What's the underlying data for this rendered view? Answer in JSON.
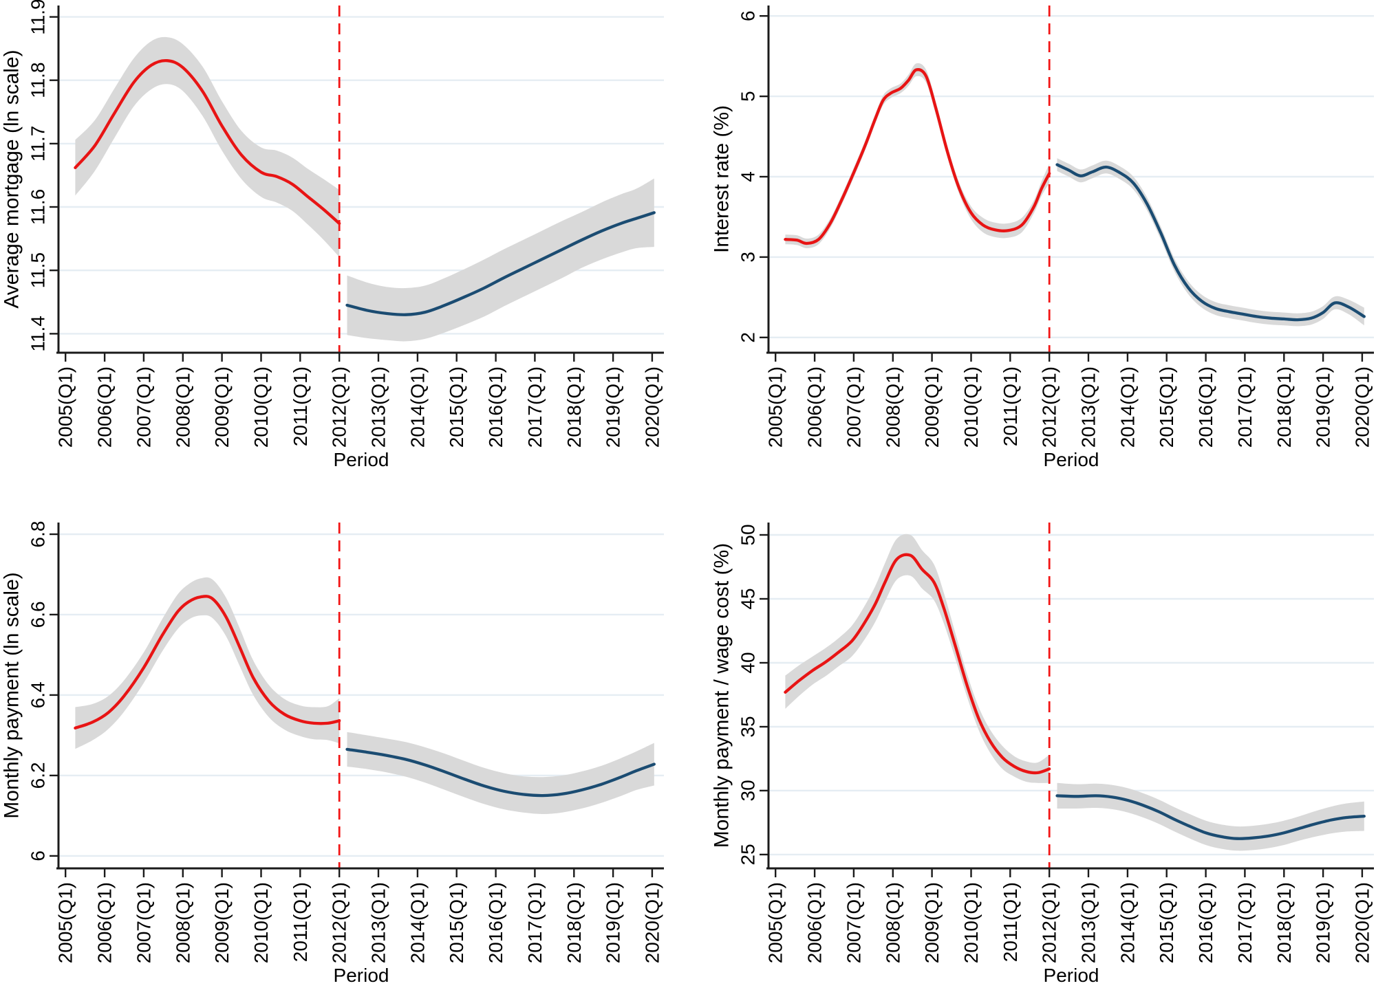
{
  "colors": {
    "red": "#e81414",
    "navy": "#1b4c72",
    "band": "#d9d9d9",
    "grid": "#e5edf3",
    "axis": "#1a1a1a",
    "text": "#000000"
  },
  "cutoff": {
    "x": 2012,
    "label": "2012(Q1)",
    "style": "dashed",
    "color": "#f21515"
  },
  "x_axis": {
    "title": "Period",
    "range": [
      2004.82,
      2020.3
    ],
    "tick_values": [
      2005,
      2006,
      2007,
      2008,
      2009,
      2010,
      2011,
      2012,
      2013,
      2014,
      2015,
      2016,
      2017,
      2018,
      2019,
      2020
    ],
    "tick_labels": [
      "2005(Q1)",
      "2006(Q1)",
      "2007(Q1)",
      "2008(Q1)",
      "2009(Q1)",
      "2010(Q1)",
      "2011(Q1)",
      "2012(Q1)",
      "2013(Q1)",
      "2014(Q1)",
      "2015(Q1)",
      "2016(Q1)",
      "2017(Q1)",
      "2018(Q1)",
      "2019(Q1)",
      "2020(Q1)"
    ],
    "tick_label_rotation_deg": -90
  },
  "chart_data": [
    {
      "type": "line",
      "position": "top-left",
      "ylabel": "Average mortgage (ln scale)",
      "xlabel": "Period",
      "grid": true,
      "legend": "none",
      "ylim": [
        11.37,
        11.918
      ],
      "ytick_values": [
        11.4,
        11.5,
        11.6,
        11.7,
        11.8,
        11.9
      ],
      "ytick_labels": [
        "11.4",
        "11.5",
        "11.6",
        "11.7",
        "11.8",
        "11.9"
      ],
      "series": [
        {
          "name": "before-2012",
          "color": "#e81414",
          "x": [
            2005.25,
            2005.75,
            2006.25,
            2006.75,
            2007.2,
            2007.6,
            2008.0,
            2008.5,
            2009.0,
            2009.5,
            2010.0,
            2010.4,
            2010.8,
            2011.2,
            2011.6,
            2012.0
          ],
          "y": [
            11.662,
            11.697,
            11.748,
            11.797,
            11.824,
            11.831,
            11.82,
            11.783,
            11.728,
            11.682,
            11.655,
            11.648,
            11.636,
            11.616,
            11.596,
            11.574
          ],
          "y_upper": [
            11.706,
            11.737,
            11.787,
            11.835,
            11.862,
            11.868,
            11.857,
            11.822,
            11.767,
            11.72,
            11.694,
            11.689,
            11.678,
            11.66,
            11.644,
            11.627
          ],
          "y_lower": [
            11.618,
            11.657,
            11.709,
            11.759,
            11.786,
            11.794,
            11.783,
            11.744,
            11.689,
            11.644,
            11.616,
            11.607,
            11.594,
            11.572,
            11.548,
            11.521
          ]
        },
        {
          "name": "after-2012",
          "color": "#1b4c72",
          "x": [
            2012.2,
            2012.7,
            2013.2,
            2013.7,
            2014.2,
            2014.7,
            2015.2,
            2015.7,
            2016.2,
            2016.7,
            2017.2,
            2017.7,
            2018.2,
            2018.7,
            2019.2,
            2019.6,
            2020.05
          ],
          "y": [
            11.445,
            11.437,
            11.432,
            11.43,
            11.434,
            11.445,
            11.458,
            11.472,
            11.488,
            11.503,
            11.518,
            11.533,
            11.548,
            11.562,
            11.574,
            11.582,
            11.591
          ],
          "y_upper": [
            11.492,
            11.481,
            11.474,
            11.472,
            11.476,
            11.488,
            11.502,
            11.517,
            11.533,
            11.548,
            11.563,
            11.578,
            11.592,
            11.607,
            11.62,
            11.629,
            11.645
          ],
          "y_lower": [
            11.398,
            11.393,
            11.39,
            11.388,
            11.392,
            11.402,
            11.414,
            11.427,
            11.443,
            11.458,
            11.473,
            11.488,
            11.504,
            11.517,
            11.528,
            11.535,
            11.537
          ]
        }
      ]
    },
    {
      "type": "line",
      "position": "top-right",
      "ylabel": "Interest rate (%)",
      "xlabel": "Period",
      "grid": true,
      "legend": "none",
      "ylim": [
        1.81,
        6.13
      ],
      "ytick_values": [
        2,
        3,
        4,
        5,
        6
      ],
      "ytick_labels": [
        "2",
        "3",
        "4",
        "5",
        "6"
      ],
      "series": [
        {
          "name": "before-2012",
          "color": "#e81414",
          "x": [
            2005.25,
            2005.55,
            2005.8,
            2006.1,
            2006.4,
            2006.7,
            2007.0,
            2007.3,
            2007.55,
            2007.75,
            2007.95,
            2008.2,
            2008.4,
            2008.6,
            2008.85,
            2009.1,
            2009.4,
            2009.7,
            2010.0,
            2010.3,
            2010.6,
            2010.95,
            2011.3,
            2011.6,
            2011.8,
            2012.0
          ],
          "y": [
            3.22,
            3.21,
            3.17,
            3.22,
            3.42,
            3.72,
            4.05,
            4.4,
            4.72,
            4.95,
            5.04,
            5.1,
            5.2,
            5.33,
            5.25,
            4.85,
            4.3,
            3.85,
            3.55,
            3.4,
            3.34,
            3.33,
            3.4,
            3.62,
            3.85,
            4.04
          ],
          "y_upper": [
            3.28,
            3.27,
            3.23,
            3.28,
            3.48,
            3.78,
            4.11,
            4.46,
            4.78,
            5.01,
            5.1,
            5.16,
            5.27,
            5.41,
            5.33,
            4.93,
            4.37,
            3.92,
            3.63,
            3.49,
            3.43,
            3.42,
            3.49,
            3.7,
            3.94,
            4.16
          ],
          "y_lower": [
            3.16,
            3.15,
            3.11,
            3.16,
            3.36,
            3.66,
            3.99,
            4.34,
            4.66,
            4.89,
            4.98,
            5.04,
            5.13,
            5.25,
            5.17,
            4.77,
            4.23,
            3.78,
            3.47,
            3.31,
            3.25,
            3.24,
            3.31,
            3.54,
            3.76,
            3.92
          ]
        },
        {
          "name": "after-2012",
          "color": "#1b4c72",
          "x": [
            2012.2,
            2012.5,
            2012.8,
            2013.1,
            2013.45,
            2013.8,
            2014.15,
            2014.5,
            2014.85,
            2015.2,
            2015.55,
            2015.9,
            2016.25,
            2016.6,
            2016.95,
            2017.3,
            2017.65,
            2018.0,
            2018.35,
            2018.7,
            2019.0,
            2019.3,
            2019.65,
            2020.05
          ],
          "y": [
            4.15,
            4.08,
            4.01,
            4.06,
            4.12,
            4.05,
            3.92,
            3.66,
            3.3,
            2.9,
            2.62,
            2.45,
            2.36,
            2.32,
            2.29,
            2.26,
            2.24,
            2.23,
            2.22,
            2.24,
            2.31,
            2.43,
            2.38,
            2.26
          ],
          "y_upper": [
            4.23,
            4.16,
            4.09,
            4.14,
            4.2,
            4.13,
            4.0,
            3.74,
            3.38,
            2.98,
            2.7,
            2.53,
            2.44,
            2.4,
            2.37,
            2.34,
            2.32,
            2.31,
            2.3,
            2.32,
            2.39,
            2.51,
            2.47,
            2.37
          ],
          "y_lower": [
            4.07,
            4.0,
            3.93,
            3.98,
            4.04,
            3.97,
            3.84,
            3.58,
            3.22,
            2.82,
            2.54,
            2.37,
            2.28,
            2.24,
            2.21,
            2.18,
            2.16,
            2.15,
            2.14,
            2.16,
            2.23,
            2.35,
            2.29,
            2.15
          ]
        }
      ]
    },
    {
      "type": "line",
      "position": "bottom-left",
      "ylabel": "Monthly payment (ln scale)",
      "xlabel": "Period",
      "grid": true,
      "legend": "none",
      "ylim": [
        5.969,
        6.829
      ],
      "ytick_values": [
        6,
        6.2,
        6.4,
        6.6,
        6.8
      ],
      "ytick_labels": [
        "6",
        "6.2",
        "6.4",
        "6.6",
        "6.8"
      ],
      "series": [
        {
          "name": "before-2012",
          "color": "#e81414",
          "x": [
            2005.25,
            2005.7,
            2006.1,
            2006.5,
            2007.0,
            2007.45,
            2007.85,
            2008.15,
            2008.45,
            2008.75,
            2009.1,
            2009.45,
            2009.8,
            2010.2,
            2010.6,
            2011.0,
            2011.35,
            2011.7,
            2012.0
          ],
          "y": [
            6.318,
            6.333,
            6.357,
            6.398,
            6.468,
            6.545,
            6.605,
            6.632,
            6.644,
            6.64,
            6.595,
            6.52,
            6.443,
            6.385,
            6.352,
            6.336,
            6.33,
            6.33,
            6.336
          ],
          "y_upper": [
            6.37,
            6.378,
            6.398,
            6.437,
            6.506,
            6.585,
            6.648,
            6.676,
            6.69,
            6.688,
            6.643,
            6.567,
            6.486,
            6.425,
            6.39,
            6.374,
            6.37,
            6.372,
            6.392
          ],
          "y_lower": [
            6.266,
            6.288,
            6.316,
            6.359,
            6.43,
            6.505,
            6.562,
            6.588,
            6.598,
            6.592,
            6.547,
            6.473,
            6.4,
            6.345,
            6.314,
            6.298,
            6.29,
            6.288,
            6.28
          ]
        },
        {
          "name": "after-2012",
          "color": "#1b4c72",
          "x": [
            2012.2,
            2012.7,
            2013.2,
            2013.7,
            2014.2,
            2014.7,
            2015.2,
            2015.7,
            2016.2,
            2016.7,
            2017.2,
            2017.7,
            2018.2,
            2018.7,
            2019.2,
            2019.6,
            2020.05
          ],
          "y": [
            6.265,
            6.258,
            6.25,
            6.24,
            6.226,
            6.209,
            6.191,
            6.174,
            6.161,
            6.153,
            6.15,
            6.154,
            6.164,
            6.178,
            6.196,
            6.212,
            6.228
          ],
          "y_upper": [
            6.308,
            6.3,
            6.292,
            6.283,
            6.27,
            6.254,
            6.236,
            6.219,
            6.206,
            6.198,
            6.196,
            6.2,
            6.21,
            6.224,
            6.243,
            6.26,
            6.281
          ],
          "y_lower": [
            6.222,
            6.216,
            6.208,
            6.197,
            6.182,
            6.164,
            6.146,
            6.129,
            6.116,
            6.108,
            6.104,
            6.108,
            6.118,
            6.132,
            6.149,
            6.164,
            6.175
          ]
        }
      ]
    },
    {
      "type": "line",
      "position": "bottom-right",
      "ylabel": "Monthly payment / wage cost (%)",
      "xlabel": "Period",
      "grid": true,
      "legend": "none",
      "ylim": [
        23.92,
        50.97
      ],
      "ytick_values": [
        25,
        30,
        35,
        40,
        45,
        50
      ],
      "ytick_labels": [
        "25",
        "30",
        "35",
        "40",
        "45",
        "50"
      ],
      "series": [
        {
          "name": "before-2012",
          "color": "#e81414",
          "x": [
            2005.25,
            2005.6,
            2005.95,
            2006.3,
            2006.6,
            2006.95,
            2007.25,
            2007.55,
            2007.8,
            2008.1,
            2008.45,
            2008.75,
            2009.05,
            2009.3,
            2009.6,
            2009.9,
            2010.2,
            2010.5,
            2010.8,
            2011.1,
            2011.4,
            2011.7,
            2012.0
          ],
          "y": [
            37.7,
            38.6,
            39.4,
            40.1,
            40.8,
            41.7,
            43.0,
            44.6,
            46.3,
            48.1,
            48.4,
            47.3,
            46.3,
            44.3,
            41.3,
            38.2,
            35.6,
            33.8,
            32.6,
            31.9,
            31.5,
            31.4,
            31.7
          ],
          "y_upper": [
            39.0,
            39.8,
            40.5,
            41.2,
            41.9,
            42.9,
            44.3,
            46.0,
            47.8,
            49.7,
            50.0,
            48.8,
            47.7,
            45.5,
            42.3,
            39.1,
            36.5,
            34.7,
            33.5,
            32.7,
            32.3,
            32.2,
            32.8
          ],
          "y_lower": [
            36.4,
            37.4,
            38.3,
            39.0,
            39.7,
            40.5,
            41.7,
            43.2,
            44.8,
            46.5,
            46.8,
            45.8,
            44.9,
            43.1,
            40.3,
            37.3,
            34.7,
            32.9,
            31.7,
            31.1,
            30.7,
            30.6,
            30.6
          ]
        },
        {
          "name": "after-2012",
          "color": "#1b4c72",
          "x": [
            2012.2,
            2012.7,
            2013.2,
            2013.6,
            2014.0,
            2014.4,
            2014.8,
            2015.2,
            2015.6,
            2016.0,
            2016.4,
            2016.8,
            2017.2,
            2017.6,
            2018.0,
            2018.4,
            2018.8,
            2019.2,
            2019.6,
            2020.05
          ],
          "y": [
            29.6,
            29.55,
            29.6,
            29.5,
            29.25,
            28.85,
            28.35,
            27.75,
            27.2,
            26.7,
            26.4,
            26.25,
            26.3,
            26.45,
            26.7,
            27.05,
            27.4,
            27.7,
            27.9,
            28.0
          ],
          "y_upper": [
            30.6,
            30.5,
            30.55,
            30.45,
            30.2,
            29.8,
            29.3,
            28.7,
            28.15,
            27.65,
            27.35,
            27.2,
            27.25,
            27.4,
            27.65,
            28.0,
            28.4,
            28.75,
            29.0,
            29.15
          ],
          "y_lower": [
            28.6,
            28.6,
            28.65,
            28.55,
            28.3,
            27.9,
            27.4,
            26.8,
            26.25,
            25.75,
            25.45,
            25.3,
            25.35,
            25.5,
            25.75,
            26.1,
            26.4,
            26.65,
            26.8,
            26.85
          ]
        }
      ]
    }
  ]
}
